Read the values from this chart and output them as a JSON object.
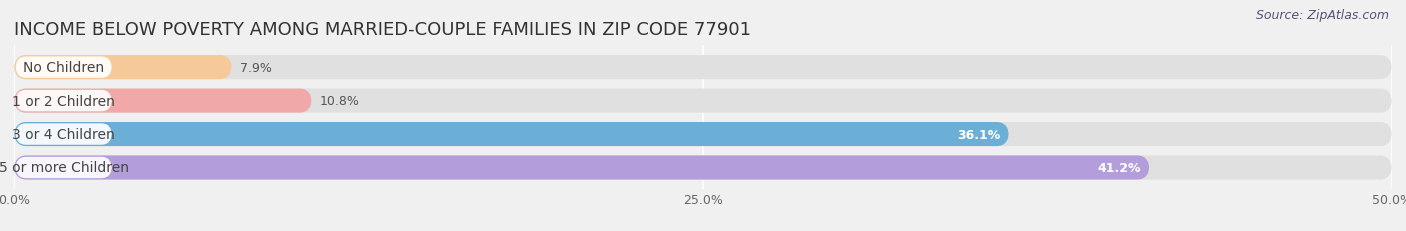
{
  "title": "INCOME BELOW POVERTY AMONG MARRIED-COUPLE FAMILIES IN ZIP CODE 77901",
  "source": "Source: ZipAtlas.com",
  "categories": [
    "No Children",
    "1 or 2 Children",
    "3 or 4 Children",
    "5 or more Children"
  ],
  "values": [
    7.9,
    10.8,
    36.1,
    41.2
  ],
  "bar_colors": [
    "#f5c998",
    "#f0a8a8",
    "#6baed6",
    "#b39ddb"
  ],
  "label_in_bar": [
    false,
    false,
    true,
    true
  ],
  "xlim": [
    0,
    50
  ],
  "xticks": [
    0.0,
    25.0,
    50.0
  ],
  "xtick_labels": [
    "0.0%",
    "25.0%",
    "50.0%"
  ],
  "title_fontsize": 13,
  "source_fontsize": 9,
  "bar_label_fontsize": 9,
  "category_fontsize": 10,
  "background_color": "#f0f0f0",
  "bar_bg_color": "#e0e0e0",
  "bar_height": 0.72,
  "bar_gap": 0.28
}
